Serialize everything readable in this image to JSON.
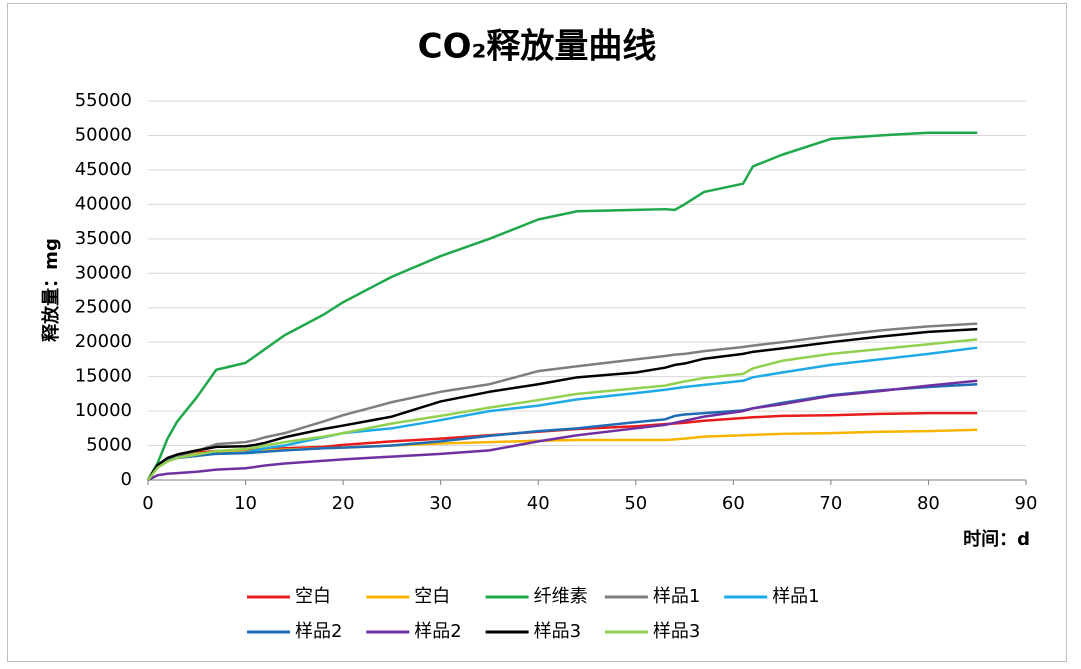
{
  "chart_data": {
    "type": "line",
    "title": "CO₂释放量曲线",
    "x_label": "时间：d",
    "y_label": "释放量：mg",
    "x": [
      0,
      1,
      2,
      3,
      5,
      7,
      10,
      11,
      12,
      14,
      18,
      20,
      25,
      30,
      35,
      40,
      44,
      50,
      53,
      54,
      55,
      57,
      61,
      62,
      65,
      70,
      75,
      80,
      85
    ],
    "series": [
      {
        "name": "空白",
        "color": "#e81c1c",
        "values": [
          0,
          2000,
          3000,
          3500,
          4000,
          4200,
          4300,
          4400,
          4500,
          4600,
          4800,
          5100,
          5600,
          6000,
          6500,
          7000,
          7400,
          7800,
          8100,
          8200,
          8300,
          8600,
          9000,
          9100,
          9300,
          9400,
          9600,
          9700,
          9700
        ]
      },
      {
        "name": "空白",
        "color": "#f7b500",
        "values": [
          0,
          2000,
          3000,
          3400,
          3800,
          4000,
          4100,
          4200,
          4300,
          4400,
          4600,
          4700,
          5000,
          5300,
          5500,
          5700,
          5800,
          5800,
          5800,
          5900,
          6000,
          6300,
          6500,
          6550,
          6700,
          6800,
          7000,
          7100,
          7300
        ]
      },
      {
        "name": "纤维素",
        "color": "#1fa84a",
        "values": [
          0,
          2500,
          6000,
          8500,
          12000,
          16000,
          17000,
          18000,
          19000,
          21000,
          24000,
          25800,
          29500,
          32500,
          35000,
          37800,
          39000,
          39200,
          39300,
          39200,
          40000,
          41800,
          43000,
          45500,
          47200,
          49500,
          50000,
          50400,
          50400
        ]
      },
      {
        "name": "样品1",
        "color": "#7f7f7f",
        "values": [
          0,
          2000,
          3000,
          3500,
          4200,
          5200,
          5500,
          5800,
          6200,
          6800,
          8500,
          9400,
          11300,
          12800,
          13900,
          15800,
          16500,
          17500,
          18000,
          18200,
          18300,
          18700,
          19300,
          19500,
          20000,
          20900,
          21700,
          22300,
          22700
        ]
      },
      {
        "name": "样品1",
        "color": "#1eaae6",
        "values": [
          0,
          2000,
          2800,
          3200,
          3600,
          3800,
          4000,
          4300,
          4600,
          5000,
          6200,
          6800,
          7500,
          8700,
          10000,
          10800,
          11700,
          12600,
          13100,
          13300,
          13500,
          13800,
          14400,
          14900,
          15600,
          16700,
          17500,
          18300,
          19200
        ]
      },
      {
        "name": "样品2",
        "color": "#1f6db4",
        "values": [
          0,
          2000,
          2900,
          3200,
          3500,
          3800,
          3900,
          4000,
          4100,
          4300,
          4600,
          4700,
          5000,
          5600,
          6400,
          7100,
          7500,
          8400,
          8800,
          9300,
          9500,
          9700,
          10100,
          10400,
          11200,
          12300,
          13000,
          13500,
          13900
        ]
      },
      {
        "name": "样品2",
        "color": "#7030a0",
        "values": [
          0,
          700,
          900,
          1000,
          1200,
          1500,
          1700,
          1900,
          2100,
          2400,
          2800,
          3000,
          3400,
          3800,
          4300,
          5600,
          6500,
          7500,
          8000,
          8300,
          8600,
          9200,
          10000,
          10400,
          11000,
          12200,
          12900,
          13700,
          14400
        ]
      },
      {
        "name": "样品3",
        "color": "#000000",
        "values": [
          0,
          2200,
          3200,
          3700,
          4300,
          4800,
          4900,
          5100,
          5400,
          6200,
          7400,
          7900,
          9200,
          11400,
          12800,
          13900,
          14900,
          15600,
          16300,
          16700,
          16900,
          17600,
          18300,
          18600,
          19100,
          20000,
          20800,
          21500,
          21900
        ]
      },
      {
        "name": "样品3",
        "color": "#92d050",
        "values": [
          0,
          1800,
          2700,
          3200,
          3700,
          4200,
          4500,
          4700,
          5000,
          5500,
          6300,
          6800,
          8200,
          9300,
          10500,
          11600,
          12500,
          13300,
          13700,
          14000,
          14300,
          14800,
          15400,
          16200,
          17300,
          18300,
          19000,
          19700,
          20400
        ]
      }
    ],
    "xlim": [
      0,
      90
    ],
    "xticks": [
      0,
      10,
      20,
      30,
      40,
      50,
      60,
      70,
      80,
      90
    ],
    "ylim": [
      0,
      55000
    ],
    "yticks": [
      0,
      5000,
      10000,
      15000,
      20000,
      25000,
      30000,
      35000,
      40000,
      45000,
      50000,
      55000
    ],
    "grid": true,
    "legend": "bottom"
  }
}
